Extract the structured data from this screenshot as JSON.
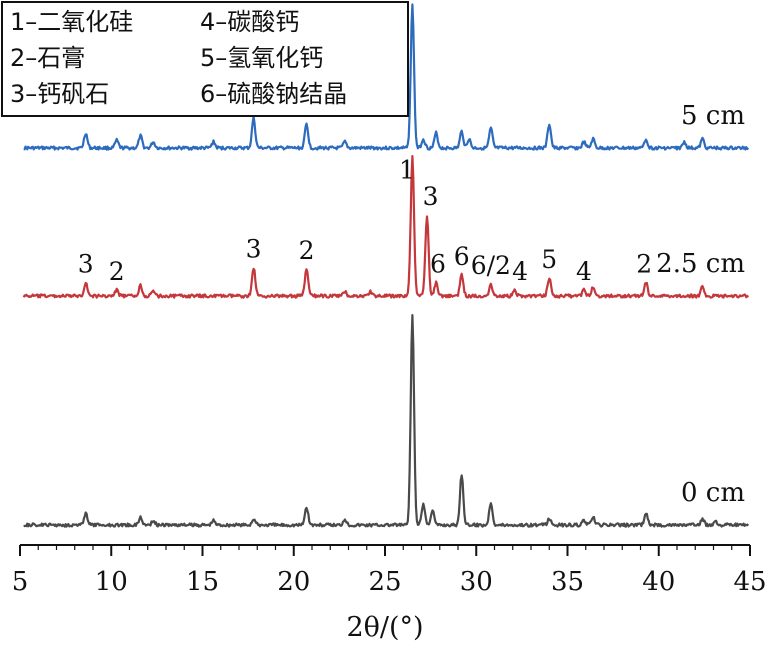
{
  "chart_data": {
    "type": "line",
    "xlabel": "2θ/(°)",
    "xlim": [
      5,
      45
    ],
    "xticks": [
      5,
      10,
      15,
      20,
      25,
      30,
      35,
      40,
      45
    ],
    "grid": false,
    "legend_position": "top-left",
    "legend": [
      "1–二氧化硅",
      "4–碳酸钙",
      "2–石膏",
      "5–氢氧化钙",
      "3–钙矾石",
      "6–硫酸钠结晶"
    ],
    "peaks": [
      {
        "x": 8.6,
        "h": 1.0
      },
      {
        "x": 10.3,
        "h": 0.55
      },
      {
        "x": 11.6,
        "h": 0.9
      },
      {
        "x": 12.3,
        "h": 0.4
      },
      {
        "x": 15.6,
        "h": 0.4
      },
      {
        "x": 17.8,
        "h": 1.8
      },
      {
        "x": 20.7,
        "h": 1.7
      },
      {
        "x": 21.9,
        "h": 0.35
      },
      {
        "x": 22.8,
        "h": 0.5
      },
      {
        "x": 24.2,
        "h": 0.35
      },
      {
        "x": 26.5,
        "h": 13.0
      },
      {
        "x": 26.9,
        "h": 0.9
      },
      {
        "x": 27.3,
        "h": 1.3
      },
      {
        "x": 27.8,
        "h": 1.0
      },
      {
        "x": 29.2,
        "h": 1.4
      },
      {
        "x": 29.6,
        "h": 0.8
      },
      {
        "x": 30.8,
        "h": 1.6
      },
      {
        "x": 32.1,
        "h": 0.5
      },
      {
        "x": 34.0,
        "h": 2.2
      },
      {
        "x": 35.9,
        "h": 0.5
      },
      {
        "x": 36.4,
        "h": 0.9
      },
      {
        "x": 39.3,
        "h": 0.8
      },
      {
        "x": 40.3,
        "h": 0.4
      },
      {
        "x": 41.4,
        "h": 0.5
      },
      {
        "x": 42.4,
        "h": 0.8
      },
      {
        "x": 43.1,
        "h": 0.4
      }
    ],
    "series": [
      {
        "name": "5 cm",
        "color": "#2d6bbf",
        "baseline": 148,
        "peaks": [
          {
            "x": 8.6,
            "h": 1.0
          },
          {
            "x": 10.3,
            "h": 0.5
          },
          {
            "x": 11.6,
            "h": 0.8
          },
          {
            "x": 12.3,
            "h": 0.4
          },
          {
            "x": 15.6,
            "h": 0.4
          },
          {
            "x": 17.8,
            "h": 2.0
          },
          {
            "x": 20.7,
            "h": 1.6
          },
          {
            "x": 22.8,
            "h": 0.4
          },
          {
            "x": 26.5,
            "h": 9.5
          },
          {
            "x": 27.1,
            "h": 0.6
          },
          {
            "x": 27.8,
            "h": 1.0
          },
          {
            "x": 29.2,
            "h": 1.1
          },
          {
            "x": 29.6,
            "h": 0.6
          },
          {
            "x": 30.8,
            "h": 1.3
          },
          {
            "x": 34.0,
            "h": 1.6
          },
          {
            "x": 35.9,
            "h": 0.4
          },
          {
            "x": 36.4,
            "h": 0.6
          },
          {
            "x": 39.3,
            "h": 0.6
          },
          {
            "x": 41.4,
            "h": 0.4
          },
          {
            "x": 42.4,
            "h": 0.6
          }
        ]
      },
      {
        "name": "2.5 cm",
        "color": "#c4373b",
        "baseline": 296,
        "peaks": [
          {
            "x": 8.6,
            "h": 0.9
          },
          {
            "x": 10.3,
            "h": 0.4
          },
          {
            "x": 11.6,
            "h": 0.7
          },
          {
            "x": 12.3,
            "h": 0.3
          },
          {
            "x": 17.8,
            "h": 1.9
          },
          {
            "x": 20.7,
            "h": 1.8
          },
          {
            "x": 22.8,
            "h": 0.3
          },
          {
            "x": 24.2,
            "h": 0.3
          },
          {
            "x": 26.5,
            "h": 9.3
          },
          {
            "x": 27.3,
            "h": 5.4
          },
          {
            "x": 27.8,
            "h": 0.9
          },
          {
            "x": 29.2,
            "h": 1.4
          },
          {
            "x": 30.8,
            "h": 0.8
          },
          {
            "x": 32.1,
            "h": 0.4
          },
          {
            "x": 34.0,
            "h": 1.2
          },
          {
            "x": 35.9,
            "h": 0.4
          },
          {
            "x": 36.4,
            "h": 0.6
          },
          {
            "x": 39.3,
            "h": 0.9
          },
          {
            "x": 42.4,
            "h": 0.6
          }
        ]
      },
      {
        "name": "0 cm",
        "color": "#4a4a4a",
        "baseline": 525,
        "peaks": [
          {
            "x": 8.6,
            "h": 0.8
          },
          {
            "x": 11.6,
            "h": 0.5
          },
          {
            "x": 12.3,
            "h": 0.3
          },
          {
            "x": 15.6,
            "h": 0.3
          },
          {
            "x": 17.8,
            "h": 0.4
          },
          {
            "x": 20.7,
            "h": 1.2
          },
          {
            "x": 22.8,
            "h": 0.4
          },
          {
            "x": 26.5,
            "h": 14.0
          },
          {
            "x": 27.1,
            "h": 1.4
          },
          {
            "x": 27.6,
            "h": 1.0
          },
          {
            "x": 29.2,
            "h": 3.4
          },
          {
            "x": 30.8,
            "h": 1.5
          },
          {
            "x": 34.0,
            "h": 0.4
          },
          {
            "x": 35.9,
            "h": 0.3
          },
          {
            "x": 36.4,
            "h": 0.5
          },
          {
            "x": 39.3,
            "h": 0.8
          },
          {
            "x": 42.4,
            "h": 0.4
          },
          {
            "x": 43.1,
            "h": 0.3
          }
        ]
      }
    ],
    "annotations": [
      {
        "text": "3",
        "x": 8.6,
        "series": "2.5 cm"
      },
      {
        "text": "2",
        "x": 10.3,
        "series": "2.5 cm"
      },
      {
        "text": "3",
        "x": 17.8,
        "series": "2.5 cm"
      },
      {
        "text": "2",
        "x": 20.7,
        "series": "2.5 cm"
      },
      {
        "text": "1",
        "x": 26.2,
        "series": "2.5 cm"
      },
      {
        "text": "3",
        "x": 27.5,
        "series": "2.5 cm"
      },
      {
        "text": "6",
        "x": 27.9,
        "series": "2.5 cm"
      },
      {
        "text": "6",
        "x": 29.2,
        "series": "2.5 cm"
      },
      {
        "text": "6/2",
        "x": 30.8,
        "series": "2.5 cm"
      },
      {
        "text": "4",
        "x": 32.4,
        "series": "2.5 cm"
      },
      {
        "text": "5",
        "x": 34.0,
        "series": "2.5 cm"
      },
      {
        "text": "4",
        "x": 35.9,
        "series": "2.5 cm"
      },
      {
        "text": "2",
        "x": 39.2,
        "series": "2.5 cm"
      }
    ]
  }
}
